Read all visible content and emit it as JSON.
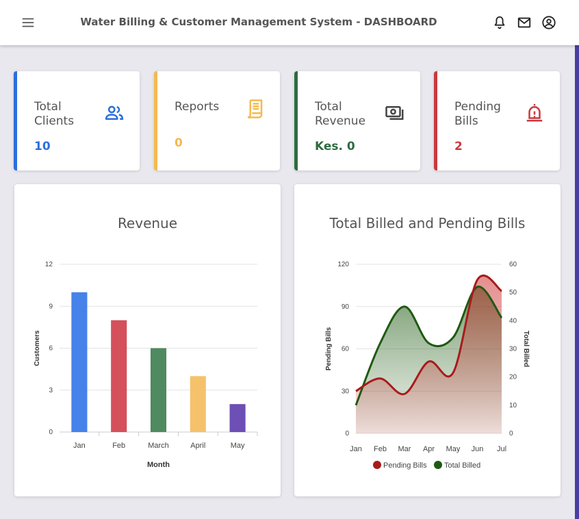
{
  "header": {
    "title": "Water Billing & Customer Management System - DASHBOARD",
    "icons": [
      "menu-icon",
      "bell-icon",
      "mail-icon",
      "account-icon"
    ]
  },
  "stats": [
    {
      "label": "Total Clients",
      "value": "10",
      "color": "#2b6fdc",
      "icon": "users-icon"
    },
    {
      "label": "Reports",
      "value": "0",
      "color": "#f5b94e",
      "icon": "receipt-icon"
    },
    {
      "label": "Total Revenue",
      "value": "Kes. 0",
      "color": "#2e6b3f",
      "icon": "money-icon"
    },
    {
      "label": "Pending Bills",
      "value": "2",
      "color": "#c9393e",
      "icon": "alarm-icon"
    }
  ],
  "chart_data": [
    {
      "type": "bar",
      "title": "Revenue",
      "categories": [
        "Jan",
        "Feb",
        "March",
        "April",
        "May"
      ],
      "values": [
        10,
        8,
        6,
        4,
        2
      ],
      "colors": [
        "#4682ea",
        "#d4505a",
        "#4f8a60",
        "#f5c26b",
        "#6d4fb5"
      ],
      "xlabel": "Month",
      "ylabel": "Customers",
      "ylim": [
        0,
        12
      ],
      "yticks": [
        0,
        3,
        6,
        9,
        12
      ],
      "grid": true
    },
    {
      "type": "area",
      "title": "Total Billed and Pending Bills",
      "categories": [
        "Jan",
        "Feb",
        "Mar",
        "Apr",
        "May",
        "Jun",
        "Jul"
      ],
      "series": [
        {
          "name": "Pending Bills",
          "axis": "left",
          "values": [
            30,
            39,
            28,
            51,
            43,
            109,
            101
          ],
          "color": "#a81b1b"
        },
        {
          "name": "Total Billed",
          "axis": "right",
          "values": [
            10,
            32,
            45,
            32,
            34,
            52,
            41
          ],
          "color": "#1f5a12"
        }
      ],
      "ylabel_left": "Pending Bills",
      "ylabel_right": "Total Billed",
      "ylim_left": [
        0,
        120
      ],
      "ylim_right": [
        0,
        60
      ],
      "yticks_left": [
        0,
        30,
        60,
        90,
        120
      ],
      "yticks_right": [
        0,
        10,
        20,
        30,
        40,
        50,
        60
      ],
      "legend": "bottom"
    }
  ]
}
